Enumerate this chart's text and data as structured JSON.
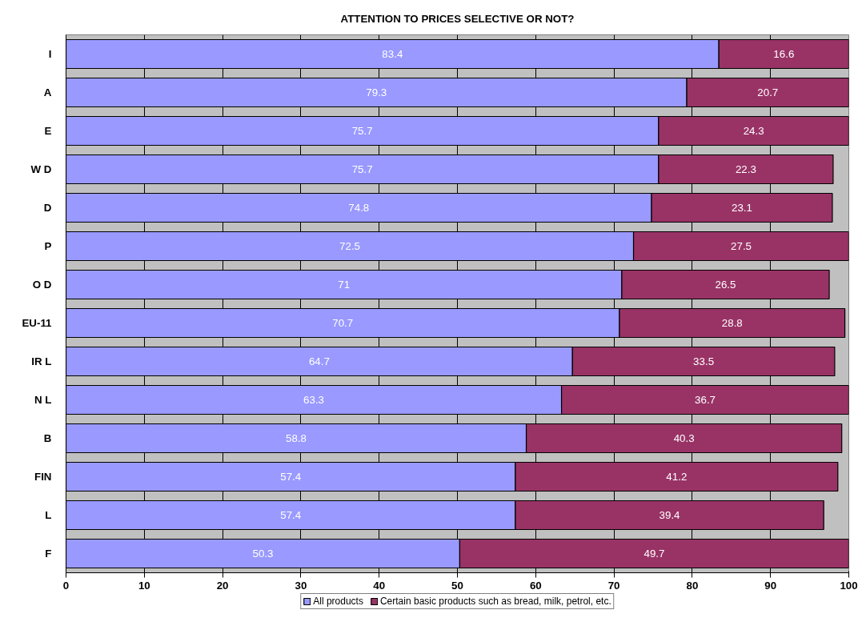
{
  "chart_data": {
    "type": "bar",
    "title": "ATTENTION TO PRICES SELECTIVE OR NOT?",
    "orientation": "horizontal",
    "stacked": true,
    "categories": [
      "I",
      "A",
      "E",
      "W D",
      "D",
      "P",
      "O D",
      "EU-11",
      "IR L",
      "N L",
      "B",
      "FIN",
      "L",
      "F"
    ],
    "series": [
      {
        "name": "All products",
        "color": "#9999ff",
        "values": [
          83.4,
          79.3,
          75.7,
          75.7,
          74.8,
          72.5,
          71,
          70.7,
          64.7,
          63.3,
          58.8,
          57.4,
          57.4,
          50.3
        ]
      },
      {
        "name": "Certain basic products such as bread, milk, petrol, etc.",
        "color": "#993366",
        "values": [
          16.6,
          20.7,
          24.3,
          22.3,
          23.1,
          27.5,
          26.5,
          28.8,
          33.5,
          36.7,
          40.3,
          41.2,
          39.4,
          49.7
        ]
      }
    ],
    "xlim": [
      0,
      100
    ],
    "xticks": [
      0,
      10,
      20,
      30,
      40,
      50,
      60,
      70,
      80,
      90,
      100
    ],
    "grid": "x",
    "legend": "bottom",
    "data_labels": true
  }
}
